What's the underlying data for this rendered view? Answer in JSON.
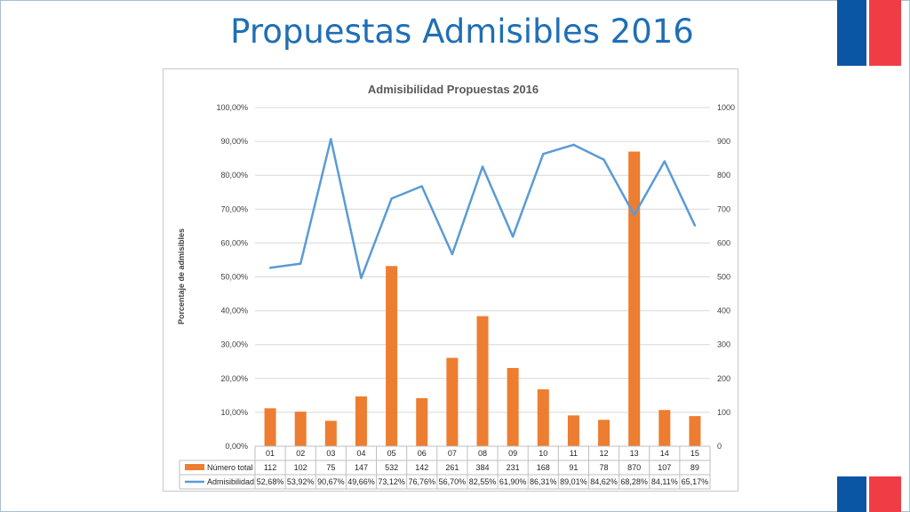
{
  "slide": {
    "title": "Propuestas Admisibles 2016"
  },
  "colors": {
    "title": "#1f6fb5",
    "bar": "#ed7d31",
    "line": "#5b9bd5",
    "flag_blue": "#0a56a5",
    "flag_red": "#f03c45"
  },
  "chart_data": {
    "type": "bar",
    "title": "Admisibilidad Propuestas 2016",
    "ylabel": "Porcentaje de admisibles",
    "categories": [
      "01",
      "02",
      "03",
      "04",
      "05",
      "06",
      "07",
      "08",
      "09",
      "10",
      "11",
      "12",
      "13",
      "14",
      "15"
    ],
    "y_left": {
      "range": [
        0,
        100
      ],
      "ticks": [
        "0,00%",
        "10,00%",
        "20,00%",
        "30,00%",
        "40,00%",
        "50,00%",
        "60,00%",
        "70,00%",
        "80,00%",
        "90,00%",
        "100,00%"
      ]
    },
    "y_right": {
      "range": [
        0,
        1000
      ],
      "ticks": [
        "0",
        "100",
        "200",
        "300",
        "400",
        "500",
        "600",
        "700",
        "800",
        "900",
        "1000"
      ]
    },
    "grid": true,
    "legend": "data-table-below",
    "series": [
      {
        "name": "Número total",
        "type": "bar",
        "axis": "right",
        "values": [
          112,
          102,
          75,
          147,
          532,
          142,
          261,
          384,
          231,
          168,
          91,
          78,
          870,
          107,
          89
        ],
        "labels": [
          "112",
          "102",
          "75",
          "147",
          "532",
          "142",
          "261",
          "384",
          "231",
          "168",
          "91",
          "78",
          "870",
          "107",
          "89"
        ]
      },
      {
        "name": "Admisibilidad",
        "type": "line",
        "axis": "left",
        "values": [
          52.68,
          53.92,
          90.67,
          49.66,
          73.12,
          76.76,
          56.7,
          82.55,
          61.9,
          86.31,
          89.01,
          84.62,
          68.28,
          84.11,
          65.17
        ],
        "labels": [
          "52,68%",
          "53,92%",
          "90,67%",
          "49,66%",
          "73,12%",
          "76,76%",
          "56,70%",
          "82,55%",
          "61,90%",
          "86,31%",
          "89,01%",
          "84,62%",
          "68,28%",
          "84,11%",
          "65,17%"
        ]
      }
    ]
  }
}
